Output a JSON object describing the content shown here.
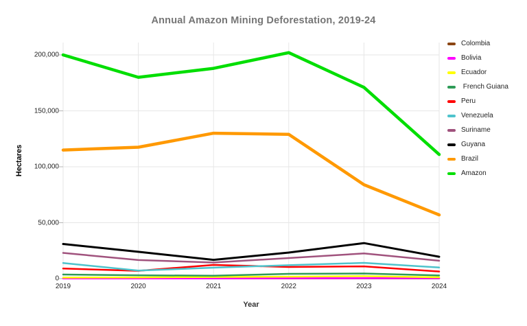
{
  "title": "Annual Amazon Mining Deforestation, 2019-24",
  "chart_data": {
    "type": "line",
    "title": "Annual Amazon Mining Deforestation, 2019-24",
    "xlabel": "Year",
    "ylabel": "Hectares",
    "x": [
      2019,
      2020,
      2021,
      2022,
      2023,
      2024
    ],
    "x_labels": [
      "2019",
      "2020",
      "2021",
      "2022",
      "2023",
      "2024"
    ],
    "ylim": [
      0,
      200000
    ],
    "y_ticks": [
      0,
      50000,
      100000,
      150000,
      200000
    ],
    "y_tick_labels": [
      "0",
      "50,000",
      "100,000",
      "150,000",
      "200,000"
    ],
    "grid": true,
    "legend_position": "right",
    "title_color": "#757575",
    "gridline_color": "#e6e6e6",
    "axis_line_color": "#b7b7b7",
    "series": [
      {
        "name": "Colombia",
        "color": "#8B4513",
        "width": 2.5,
        "values": [
          300,
          250,
          200,
          250,
          300,
          250
        ]
      },
      {
        "name": "Bolivia",
        "color": "#FF00FF",
        "width": 2.5,
        "values": [
          150,
          150,
          250,
          350,
          450,
          350
        ]
      },
      {
        "name": "Ecuador",
        "color": "#FFFF00",
        "width": 2.5,
        "values": [
          900,
          1100,
          1500,
          1800,
          2200,
          1200
        ]
      },
      {
        "name": " French Guiana",
        "color": "#2E9B57",
        "width": 2.5,
        "values": [
          3700,
          3000,
          2600,
          4300,
          4600,
          2800
        ]
      },
      {
        "name": "Peru",
        "color": "#FF0000",
        "width": 2.5,
        "values": [
          9000,
          7000,
          12300,
          10400,
          11000,
          6400
        ]
      },
      {
        "name": "Venezuela",
        "color": "#4EC3CC",
        "width": 2.5,
        "values": [
          14000,
          7200,
          9800,
          12000,
          14100,
          10000
        ]
      },
      {
        "name": "Suriname",
        "color": "#A0527D",
        "width": 2.5,
        "values": [
          23000,
          16600,
          14400,
          18400,
          22500,
          16000
        ]
      },
      {
        "name": "Guyana",
        "color": "#000000",
        "width": 3,
        "values": [
          31000,
          24000,
          16800,
          23300,
          31800,
          19600
        ]
      },
      {
        "name": "Brazil",
        "color": "#FF9900",
        "width": 4.5,
        "values": [
          115000,
          117500,
          130000,
          129000,
          84000,
          57000
        ]
      },
      {
        "name": "Amazon",
        "color": "#00DE00",
        "width": 4.5,
        "values": [
          200000,
          180000,
          188000,
          202000,
          171000,
          111000
        ]
      }
    ]
  }
}
